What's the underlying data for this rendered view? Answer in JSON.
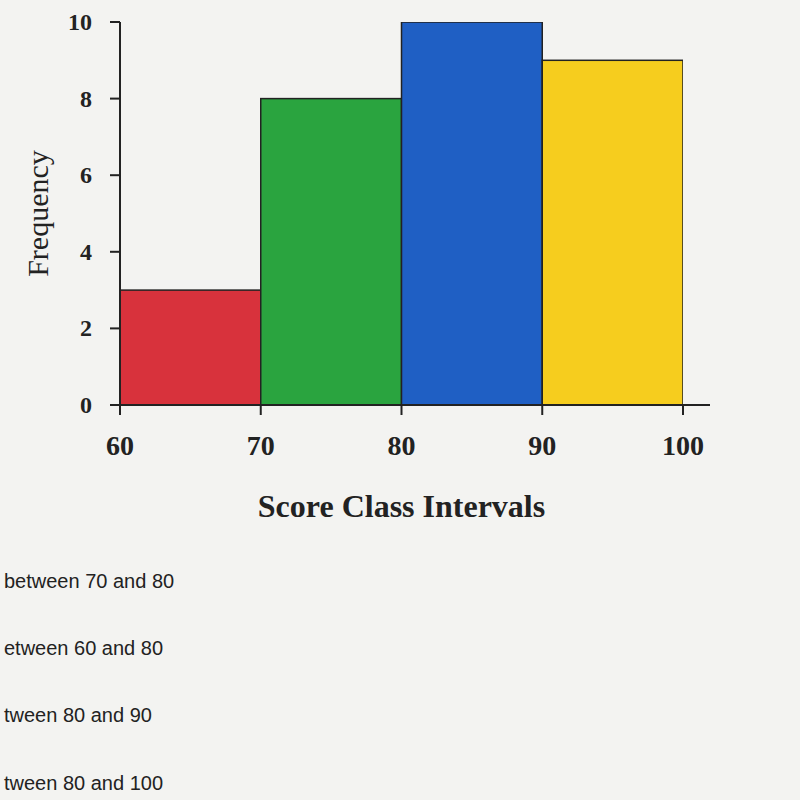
{
  "chart_data": {
    "type": "histogram",
    "x_label": "Score Class Intervals",
    "y_label": "Frequency",
    "bins": [
      60,
      70,
      80,
      90,
      100
    ],
    "values": [
      3,
      8,
      10,
      9
    ],
    "colors": [
      "#d8323c",
      "#2aa43f",
      "#1f5fc4",
      "#f6cd1e"
    ],
    "xlim": [
      60,
      100
    ],
    "xticks": [
      60,
      70,
      80,
      90,
      100
    ],
    "ylim": [
      0,
      10
    ],
    "yticks": [
      0,
      2,
      4,
      6,
      8,
      10
    ],
    "annotations": [
      "between 70 and 80",
      "etween 60 and 80",
      "tween 80 and 90",
      "tween 80 and 100"
    ]
  }
}
